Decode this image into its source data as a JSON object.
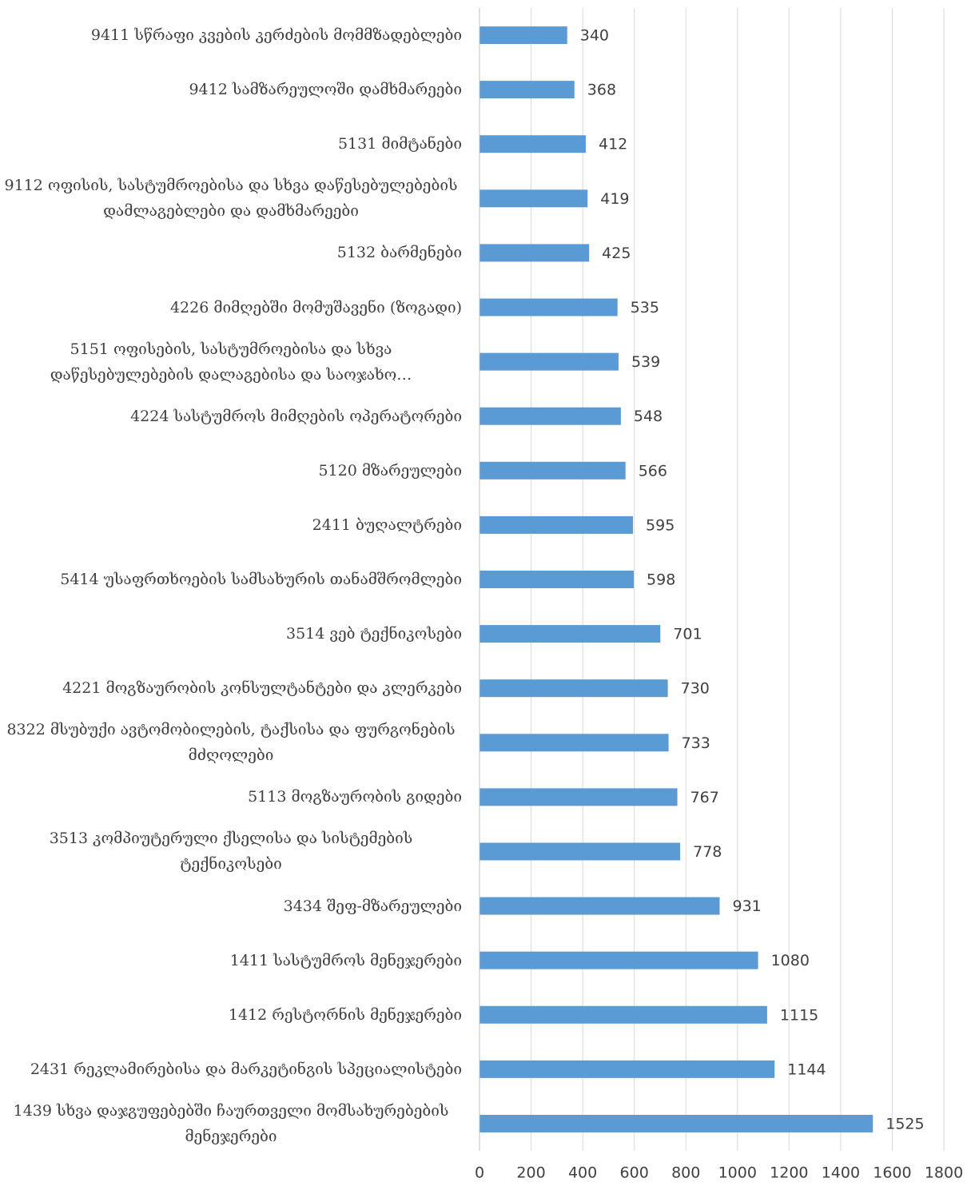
{
  "chart_data": {
    "type": "bar",
    "orientation": "horizontal",
    "color": "#5b9bd5",
    "grid": true,
    "categories": [
      "9411 სწრაფი კვების კერძების მომმზადებლები",
      "9412 სამზარეულოში დამხმარეები",
      "5131 მიმტანები",
      "9112 ოფისის, სასტუმროებისა და სხვა დაწესებულებების დამლაგებლები და  დამხმარეები",
      "5132 ბარმენები",
      "4226 მიმღებში მომუშავენი (ზოგადი)",
      "5151 ოფისების, სასტუმროებისა და სხვა დაწესებულებების დალაგებისა და საოჯახო…",
      "4224 სასტუმროს მიმღების ოპერატორები",
      "5120 მზარეულები",
      "2411 ბუღალტრები",
      "5414 უსაფრთხოების სამსახურის  თანამშრომლები",
      "3514  ვებ ტექნიკოსები",
      "4221 მოგზაურობის კონსულტანტები და კლერკები",
      "8322 მსუბუქი ავტომობილების, ტაქსისა და ფურგონების მძღოლები",
      "5113 მოგზაურობის გიდები",
      "3513 კომპიუტერული ქსელისა და სისტემების ტექნიკოსები",
      "3434 შეფ-მზარეულები",
      "1411 სასტუმროს მენეჯერები",
      "1412 რესტორნის მენეჯერები",
      "2431 რეკლამირებისა და მარკეტინგის სპეციალისტები",
      "1439 სხვა დაჯგუფებებში ჩაურთველი მომსახურებების მენეჯერები"
    ],
    "values": [
      340,
      368,
      412,
      419,
      425,
      535,
      539,
      548,
      566,
      595,
      598,
      701,
      730,
      733,
      767,
      778,
      931,
      1080,
      1115,
      1144,
      1525
    ],
    "xlim": [
      0,
      1800
    ],
    "xticks": [
      0,
      200,
      400,
      600,
      800,
      1000,
      1200,
      1400,
      1600,
      1800
    ]
  }
}
